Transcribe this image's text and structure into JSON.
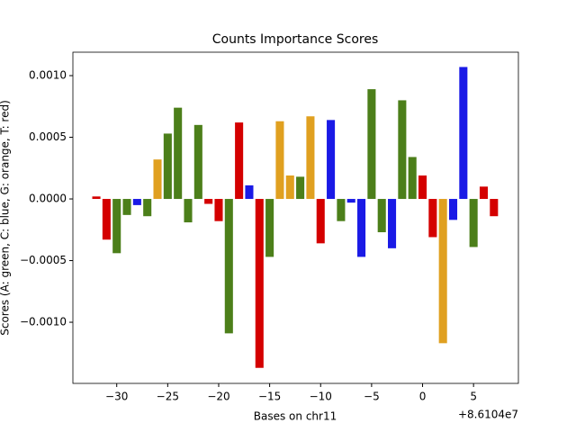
{
  "chart_data": {
    "type": "bar",
    "title": "Counts Importance Scores",
    "xlabel": "Bases on chr11",
    "ylabel": "Scores (A: green, C: blue, G: orange, T: red)",
    "x_offset_label": "+8.6104e7",
    "x": [
      -32,
      -31,
      -30,
      -29,
      -28,
      -27,
      -26,
      -25,
      -24,
      -23,
      -22,
      -21,
      -20,
      -19,
      -18,
      -17,
      -16,
      -15,
      -14,
      -13,
      -12,
      -11,
      -10,
      -9,
      -8,
      -7,
      -6,
      -5,
      -4,
      -3,
      -2,
      -1,
      0,
      1,
      2,
      3,
      4,
      5,
      6,
      7
    ],
    "values": [
      2e-05,
      -0.00033,
      -0.00044,
      -0.00013,
      -5e-05,
      -0.00014,
      0.00032,
      0.00053,
      0.00074,
      -0.00019,
      0.0006,
      -4e-05,
      -0.00018,
      -0.00109,
      0.00062,
      0.00011,
      -0.00137,
      -0.00047,
      0.00063,
      0.00019,
      0.00018,
      0.00067,
      -0.00036,
      0.00064,
      -0.00018,
      -3e-05,
      -0.00047,
      0.00089,
      -0.00027,
      -0.0004,
      0.0008,
      0.00034,
      0.00019,
      -0.00031,
      -0.00117,
      -0.00017,
      0.00107,
      -0.00039,
      0.0001,
      -0.00014
    ],
    "colors": [
      "#d40000",
      "#d40000",
      "#4c7f1a",
      "#4c7f1a",
      "#1a1ae6",
      "#4c7f1a",
      "#e0a020",
      "#4c7f1a",
      "#4c7f1a",
      "#4c7f1a",
      "#4c7f1a",
      "#d40000",
      "#d40000",
      "#4c7f1a",
      "#d40000",
      "#1a1ae6",
      "#d40000",
      "#4c7f1a",
      "#e0a020",
      "#e0a020",
      "#4c7f1a",
      "#e0a020",
      "#d40000",
      "#1a1ae6",
      "#4c7f1a",
      "#1a1ae6",
      "#1a1ae6",
      "#4c7f1a",
      "#4c7f1a",
      "#1a1ae6",
      "#4c7f1a",
      "#4c7f1a",
      "#d40000",
      "#d40000",
      "#e0a020",
      "#1a1ae6",
      "#1a1ae6",
      "#4c7f1a",
      "#d40000",
      "#d40000"
    ],
    "bar_width": 0.8,
    "xlim": [
      -34.3,
      9.4
    ],
    "ylim": [
      -0.001496,
      0.00119
    ],
    "xticks": [
      {
        "value": -30,
        "label": "−30"
      },
      {
        "value": -25,
        "label": "−25"
      },
      {
        "value": -20,
        "label": "−20"
      },
      {
        "value": -15,
        "label": "−15"
      },
      {
        "value": -10,
        "label": "−10"
      },
      {
        "value": -5,
        "label": "−5"
      },
      0,
      5
    ],
    "yticks": [
      {
        "value": -0.001,
        "label": "−0.0010"
      },
      {
        "value": -0.0005,
        "label": "−0.0005"
      },
      {
        "value": 0,
        "label": "0.0000"
      },
      {
        "value": 0.0005,
        "label": "0.0005"
      },
      {
        "value": 0.001,
        "label": "0.0010"
      }
    ],
    "grid": false
  }
}
